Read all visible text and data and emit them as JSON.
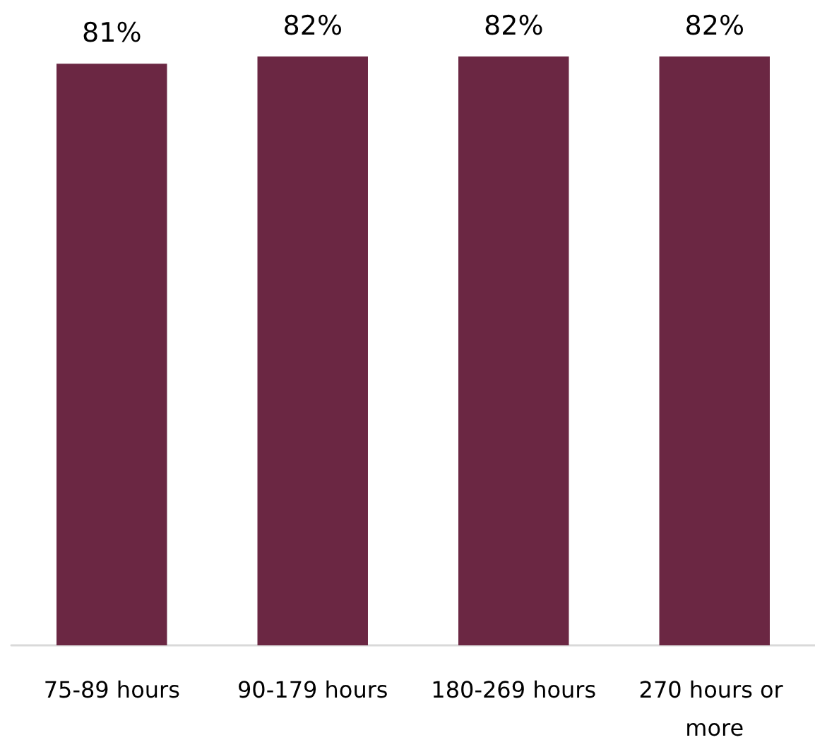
{
  "chart_data": {
    "type": "bar",
    "categories": [
      "75-89 hours",
      "90-179 hours",
      "180-269 hours",
      "270 hours or more"
    ],
    "values": [
      81,
      82,
      82,
      82
    ],
    "color": "#6b2743",
    "value_labels": [
      "81%",
      "82%",
      "82%",
      "82%"
    ]
  }
}
